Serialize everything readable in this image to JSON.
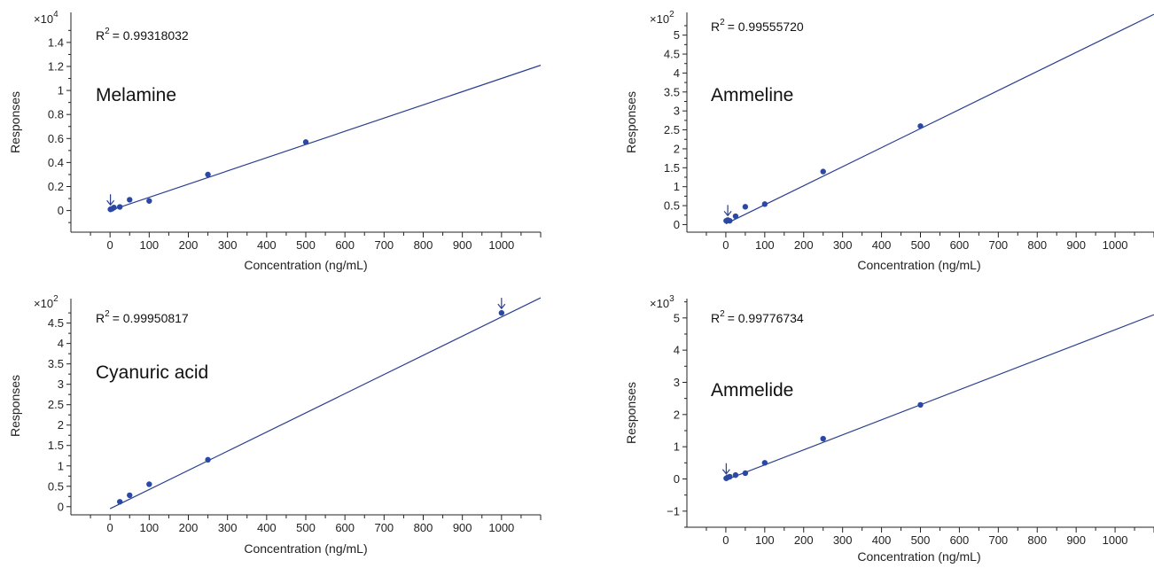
{
  "colors": {
    "line": "#2b3f8f",
    "point": "#2b49a4",
    "axis": "#222222",
    "arrow": "#2b3f8f"
  },
  "chart_data": [
    {
      "type": "scatter",
      "compound": "Melamine",
      "r2_label": "R",
      "r2_exp": "2",
      "r2_value": "= 0.99318032",
      "multiplier_base": "×10",
      "multiplier_exp": "4",
      "xlabel": "Concentration (ng/mL)",
      "ylabel": "Responses",
      "xlim": [
        -100,
        1100
      ],
      "ylim": [
        -0.18,
        1.65
      ],
      "x_ticks": [
        0,
        100,
        200,
        300,
        400,
        500,
        600,
        700,
        800,
        900,
        1000
      ],
      "y_ticks": [
        0,
        0.2,
        0.4,
        0.6,
        0.8,
        1,
        1.2,
        1.4
      ],
      "y_tick_labels": [
        "0",
        "0.2",
        "0.4",
        "0.6",
        "0.8",
        "1",
        "1.2",
        "1.4"
      ],
      "x": [
        1,
        5,
        10,
        25,
        50,
        100,
        250,
        500
      ],
      "y": [
        0.01,
        0.015,
        0.025,
        0.03,
        0.09,
        0.08,
        0.3,
        0.57
      ],
      "fit": {
        "x1": 0,
        "y1": 0,
        "x2": 1100,
        "y2": 1.21
      },
      "arrow_at": {
        "x": 1,
        "y": 0.01
      }
    },
    {
      "type": "scatter",
      "compound": "Ammeline",
      "r2_label": "R",
      "r2_exp": "2",
      "r2_value": "= 0.99555720",
      "multiplier_base": "×10",
      "multiplier_exp": "2",
      "xlabel": "Concentration (ng/mL)",
      "ylabel": "Responses",
      "xlim": [
        -100,
        1100
      ],
      "ylim": [
        -0.2,
        5.6
      ],
      "x_ticks": [
        0,
        100,
        200,
        300,
        400,
        500,
        600,
        700,
        800,
        900,
        1000
      ],
      "y_ticks": [
        0,
        0.5,
        1,
        1.5,
        2,
        2.5,
        3,
        3.5,
        4,
        4.5,
        5
      ],
      "y_tick_labels": [
        "0",
        "0.5",
        "1",
        "1.5",
        "2",
        "2.5",
        "3",
        "3.5",
        "4",
        "4.5",
        "5"
      ],
      "x": [
        1,
        5,
        10,
        25,
        50,
        100,
        250,
        500
      ],
      "y": [
        0.1,
        0.12,
        0.1,
        0.22,
        0.47,
        0.54,
        1.4,
        2.6
      ],
      "fit": {
        "x1": 0,
        "y1": 0.02,
        "x2": 1100,
        "y2": 5.55
      },
      "arrow_at": {
        "x": 5,
        "y": 0.12
      }
    },
    {
      "type": "scatter",
      "compound": "Cyanuric acid",
      "r2_label": "R",
      "r2_exp": "2",
      "r2_value": "= 0.99950817",
      "multiplier_base": "×10",
      "multiplier_exp": "2",
      "xlabel": "Concentration (ng/mL)",
      "ylabel": "Responses",
      "xlim": [
        -100,
        1100
      ],
      "ylim": [
        -0.2,
        5.1
      ],
      "x_ticks": [
        0,
        100,
        200,
        300,
        400,
        500,
        600,
        700,
        800,
        900,
        1000
      ],
      "y_ticks": [
        0,
        0.5,
        1,
        1.5,
        2,
        2.5,
        3,
        3.5,
        4,
        4.5
      ],
      "y_tick_labels": [
        "0",
        "0.5",
        "1",
        "1.5",
        "2",
        "2.5",
        "3",
        "3.5",
        "4",
        "4.5"
      ],
      "x": [
        25,
        50,
        100,
        250,
        1000
      ],
      "y": [
        0.12,
        0.28,
        0.55,
        1.15,
        4.75
      ],
      "fit": {
        "x1": 0,
        "y1": -0.05,
        "x2": 1100,
        "y2": 5.12
      },
      "arrow_at": {
        "x": 1000,
        "y": 4.75
      }
    },
    {
      "type": "scatter",
      "compound": "Ammelide",
      "r2_label": "R",
      "r2_exp": "2",
      "r2_value": "= 0.99776734",
      "multiplier_base": "×10",
      "multiplier_exp": "3",
      "xlabel": "Concentration (ng/mL)",
      "ylabel": "Responses",
      "xlim": [
        -100,
        1100
      ],
      "ylim": [
        -1.5,
        5.6
      ],
      "x_ticks": [
        0,
        100,
        200,
        300,
        400,
        500,
        600,
        700,
        800,
        900,
        1000
      ],
      "y_ticks": [
        -1,
        0,
        1,
        2,
        3,
        4,
        5
      ],
      "y_tick_labels": [
        "−1",
        "0",
        "1",
        "2",
        "3",
        "4",
        "5"
      ],
      "x": [
        1,
        5,
        10,
        25,
        50,
        100,
        250,
        500
      ],
      "y": [
        0.02,
        0.05,
        0.07,
        0.12,
        0.18,
        0.5,
        1.25,
        2.3
      ],
      "fit": {
        "x1": 0,
        "y1": -0.03,
        "x2": 1100,
        "y2": 5.1
      },
      "arrow_at": {
        "x": 1,
        "y": 0.02
      }
    }
  ]
}
